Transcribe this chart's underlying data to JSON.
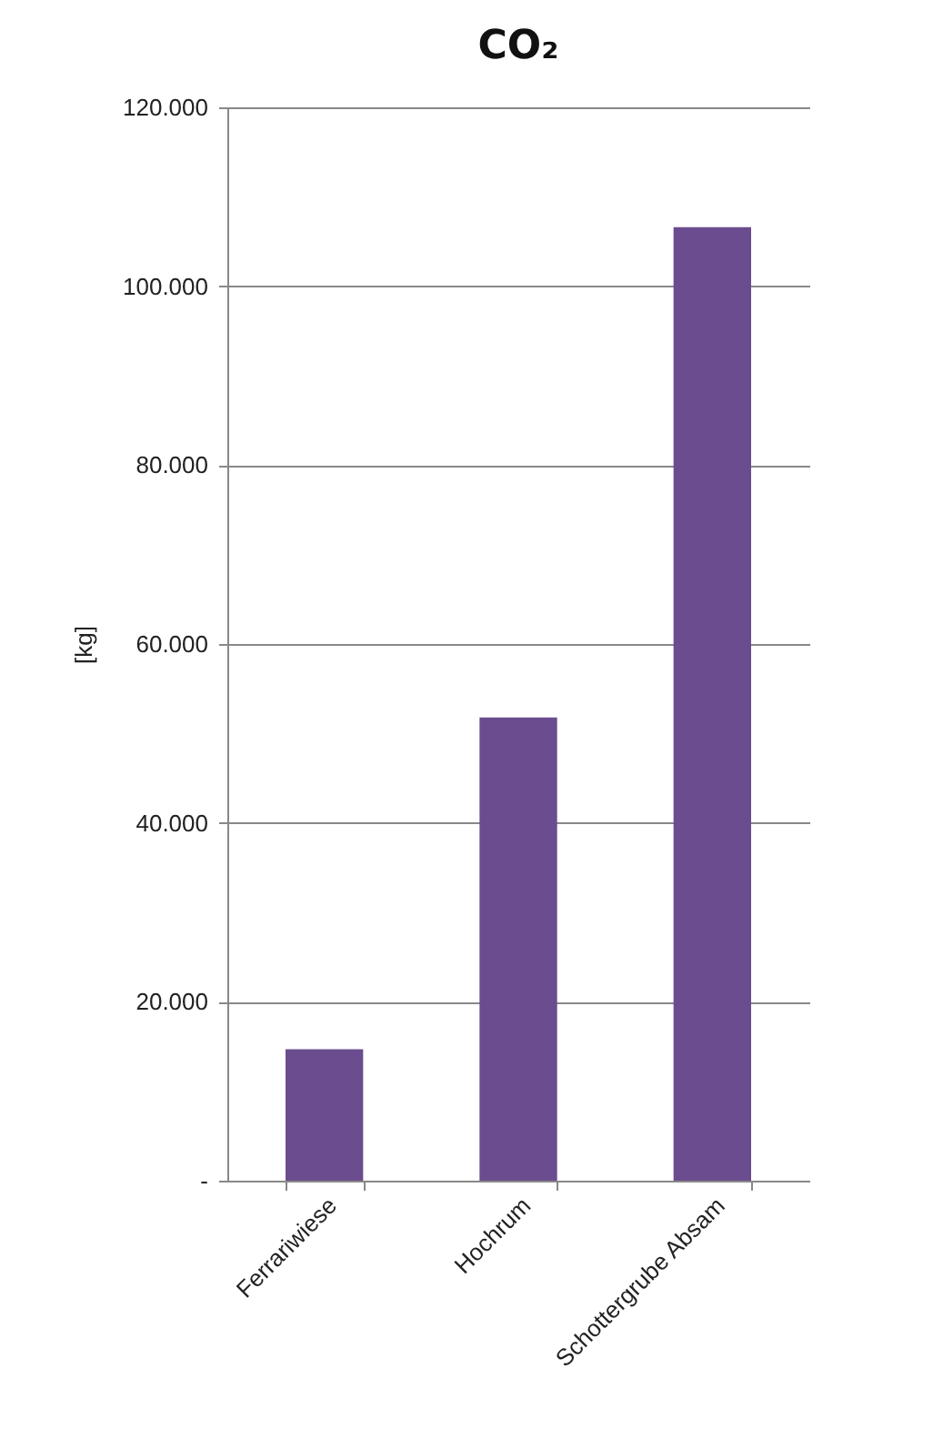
{
  "chart_data": {
    "type": "bar",
    "title": "CO₂",
    "ylabel": "[kg]",
    "categories": [
      "Ferrariwiese",
      "Hochrum",
      "Schottergrube Absam"
    ],
    "values": [
      14700,
      51800,
      106600
    ],
    "color": "#6b4c8e",
    "ylim": [
      0,
      120000
    ],
    "yticks": [
      {
        "value": 0,
        "label": "-"
      },
      {
        "value": 20000,
        "label": "20.000"
      },
      {
        "value": 40000,
        "label": "40.000"
      },
      {
        "value": 60000,
        "label": "60.000"
      },
      {
        "value": 80000,
        "label": "80.000"
      },
      {
        "value": 100000,
        "label": "100.000"
      },
      {
        "value": 120000,
        "label": "120.000"
      }
    ],
    "grid": "y"
  }
}
